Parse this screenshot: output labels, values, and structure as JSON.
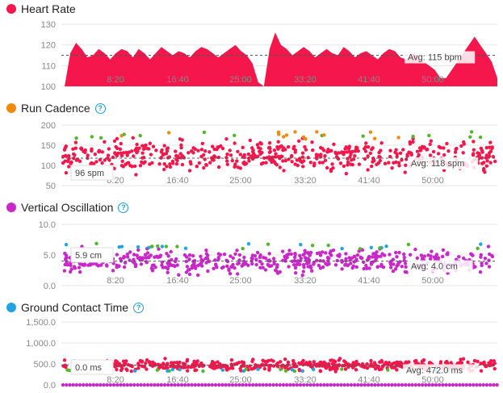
{
  "colors": {
    "heart": "#f5174c",
    "cadence": "#f08a0c",
    "vo": "#c928c9",
    "gct": "#21a4e0",
    "green": "#56b52a",
    "axis": "#e6e6e6"
  },
  "x_ticks": [
    "8:20",
    "16:40",
    "25:00",
    "33:20",
    "41:40",
    "50:00"
  ],
  "panels": [
    {
      "key": "hr",
      "title": "Heart Rate",
      "dot_color": "#f5174c",
      "help": false,
      "chart_data": {
        "type": "area",
        "y_ticks": [
          "130",
          "120",
          "110",
          "100"
        ],
        "ylim": [
          100,
          130
        ],
        "avg_label": "Avg: 115 bpm",
        "avg": 115,
        "cursor_label": "",
        "series": [
          {
            "values": [
              100,
              116,
              121,
              118,
              114,
              115,
              118,
              116,
              113,
              116,
              118,
              117,
              114,
              118,
              116,
              113,
              116,
              119,
              117,
              115,
              117,
              116,
              114,
              117,
              119,
              118,
              116,
              114,
              116,
              118,
              120,
              117,
              115,
              111,
              102,
              100,
              118,
              126,
              120,
              118,
              115,
              117,
              119,
              117,
              114,
              116,
              118,
              116,
              115,
              119,
              117,
              114,
              116,
              117,
              115,
              113,
              116,
              118,
              117,
              114,
              113,
              116,
              115,
              112,
              110,
              108,
              104,
              104,
              108,
              112,
              116,
              120,
              124,
              120,
              116,
              112,
              104
            ]
          }
        ]
      }
    },
    {
      "key": "cad",
      "title": "Run Cadence",
      "dot_color": "#f08a0c",
      "help": true,
      "chart_data": {
        "type": "scatter",
        "y_ticks": [
          "200",
          "150",
          "100",
          "50"
        ],
        "ylim": [
          50,
          200
        ],
        "avg_label": "Avg: 118 spm",
        "avg": 118,
        "cursor_label": "96 spm"
      }
    },
    {
      "key": "vo",
      "title": "Vertical Oscillation",
      "dot_color": "#c928c9",
      "help": true,
      "chart_data": {
        "type": "scatter",
        "y_ticks": [
          "10.0",
          "5.0",
          "0.0"
        ],
        "ylim": [
          0,
          10
        ],
        "avg_label": "Avg: 4.0 cm",
        "avg": 4.0,
        "cursor_label": "5.9 cm"
      }
    },
    {
      "key": "gct",
      "title": "Ground Contact Time",
      "dot_color": "#21a4e0",
      "help": true,
      "chart_data": {
        "type": "scatter",
        "y_ticks": [
          "1,500.0",
          "1,000.0",
          "500.0",
          "0.0"
        ],
        "ylim": [
          0,
          1500
        ],
        "avg_label": "Avg: 472.0 ms",
        "avg": 472,
        "cursor_label": "0.0 ms"
      }
    }
  ]
}
